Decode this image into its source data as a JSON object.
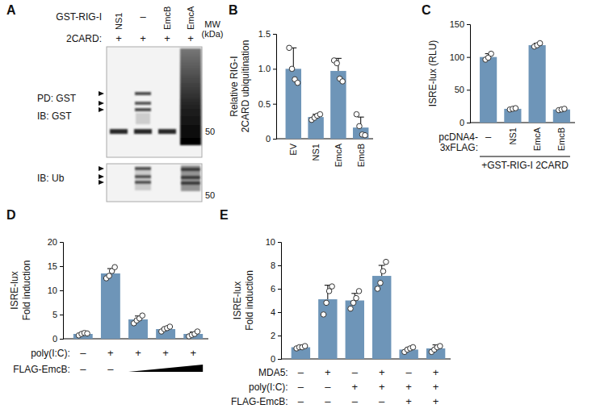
{
  "blot": {
    "panel_label": "A",
    "lane_rows": [
      {
        "label": "GST-RIG-I",
        "values": [
          "NS1",
          "–",
          "EmcB",
          "EmcA"
        ]
      },
      {
        "label": "2CARD:",
        "values": [
          "+",
          "+",
          "+",
          "+"
        ]
      }
    ],
    "mw_label": [
      "MW",
      "(kDa)"
    ],
    "panels": [
      {
        "labels": [
          "PD: GST",
          "IB: GST"
        ],
        "marker": 50
      },
      {
        "labels": [
          "IB: Ub"
        ],
        "marker": 50
      }
    ]
  },
  "chart_data": [
    {
      "type": "bar",
      "panel_label": "B",
      "y_label": [
        "Relative RIG-I",
        "2CARD ubiquitination"
      ],
      "categories": [
        "EV",
        "NS1",
        "EmcA",
        "EmcB"
      ],
      "values": [
        1.0,
        0.31,
        0.97,
        0.16
      ],
      "errors": [
        0.3,
        0.04,
        0.18,
        0.15
      ],
      "points": [
        [
          1.3,
          1.0,
          0.85,
          0.8
        ],
        [
          0.27,
          0.3,
          0.33,
          0.35
        ],
        [
          1.12,
          1.08,
          0.86,
          0.82
        ],
        [
          0.35,
          0.18,
          0.06,
          0.05
        ]
      ],
      "color": "#6e95b8",
      "ylim": [
        0,
        1.5
      ],
      "yticks": [
        0,
        0.5,
        {
          "value": 1,
          "label": "1.0"
        },
        1.5
      ]
    },
    {
      "type": "bar",
      "panel_label": "C",
      "y_label": [
        "ISRE-lux (RLU)"
      ],
      "categories": [
        "–",
        "NS1",
        "EmcA",
        "EmcB"
      ],
      "values": [
        100,
        21,
        118,
        20
      ],
      "errors": [
        5,
        1.5,
        3,
        1.5
      ],
      "points": [
        [
          96,
          99,
          105
        ],
        [
          20,
          21,
          22
        ],
        [
          116,
          118,
          121
        ],
        [
          19,
          20,
          21
        ]
      ],
      "group_label": [
        "pcDNA4-",
        "3xFLAG:"
      ],
      "bracket_label": "+GST-RIG-I 2CARD",
      "color": "#6e95b8",
      "ylim": [
        0,
        150
      ],
      "yticks": [
        0,
        50,
        100,
        150
      ]
    },
    {
      "type": "bar",
      "panel_label": "D",
      "y_label": [
        "ISRE-lux",
        "Fold induction"
      ],
      "categories": [
        null,
        null,
        null,
        null,
        null
      ],
      "values": [
        1.0,
        13.5,
        4.0,
        2.0,
        1.0
      ],
      "errors": [
        0.2,
        1.0,
        0.7,
        0.4,
        0.4
      ],
      "points": [
        [
          0.7,
          1.0,
          1.2,
          1.1
        ],
        [
          12.5,
          13.0,
          14.0,
          14.8
        ],
        [
          3.2,
          3.8,
          4.2,
          4.8
        ],
        [
          1.5,
          2.0,
          2.2,
          2.5
        ],
        [
          0.5,
          0.8,
          1.0,
          1.5
        ]
      ],
      "condition_rows": [
        {
          "label": "poly(I:C):",
          "values": [
            "–",
            "+",
            "+",
            "+",
            "+"
          ]
        },
        {
          "label": "FLAG-EmcB:",
          "values": [
            "–",
            "–",
            null,
            null,
            null
          ]
        }
      ],
      "color": "#6e95b8",
      "ylim": [
        0,
        20
      ],
      "yticks": [
        0,
        5,
        10,
        15,
        20
      ]
    },
    {
      "type": "bar",
      "panel_label": "E",
      "y_label": [
        "ISRE-lux",
        "Fold induction"
      ],
      "categories": [
        null,
        null,
        null,
        null,
        null,
        null
      ],
      "values": [
        1.0,
        5.1,
        5.0,
        7.1,
        0.8,
        0.9
      ],
      "errors": [
        0.1,
        1.2,
        0.6,
        0.9,
        0.2,
        0.3
      ],
      "points": [
        [
          0.9,
          1.0,
          1.0,
          1.1
        ],
        [
          3.8,
          4.8,
          5.8,
          6.2
        ],
        [
          4.3,
          4.8,
          5.2,
          5.8
        ],
        [
          6.0,
          6.5,
          7.5,
          8.3
        ],
        [
          0.6,
          0.8,
          0.9,
          1.0
        ],
        [
          0.6,
          0.8,
          1.0,
          1.1
        ]
      ],
      "condition_rows": [
        {
          "label": "MDA5:",
          "values": [
            "–",
            "+",
            "–",
            "+",
            "–",
            "+"
          ]
        },
        {
          "label": "poly(I:C):",
          "values": [
            "–",
            "–",
            "+",
            "+",
            "+",
            "+"
          ]
        },
        {
          "label": "FLAG-EmcB:",
          "values": [
            "–",
            "–",
            "–",
            "–",
            "+",
            "+"
          ]
        }
      ],
      "color": "#6e95b8",
      "ylim": [
        0,
        10
      ],
      "yticks": [
        0,
        2,
        4,
        6,
        8,
        10
      ]
    }
  ]
}
